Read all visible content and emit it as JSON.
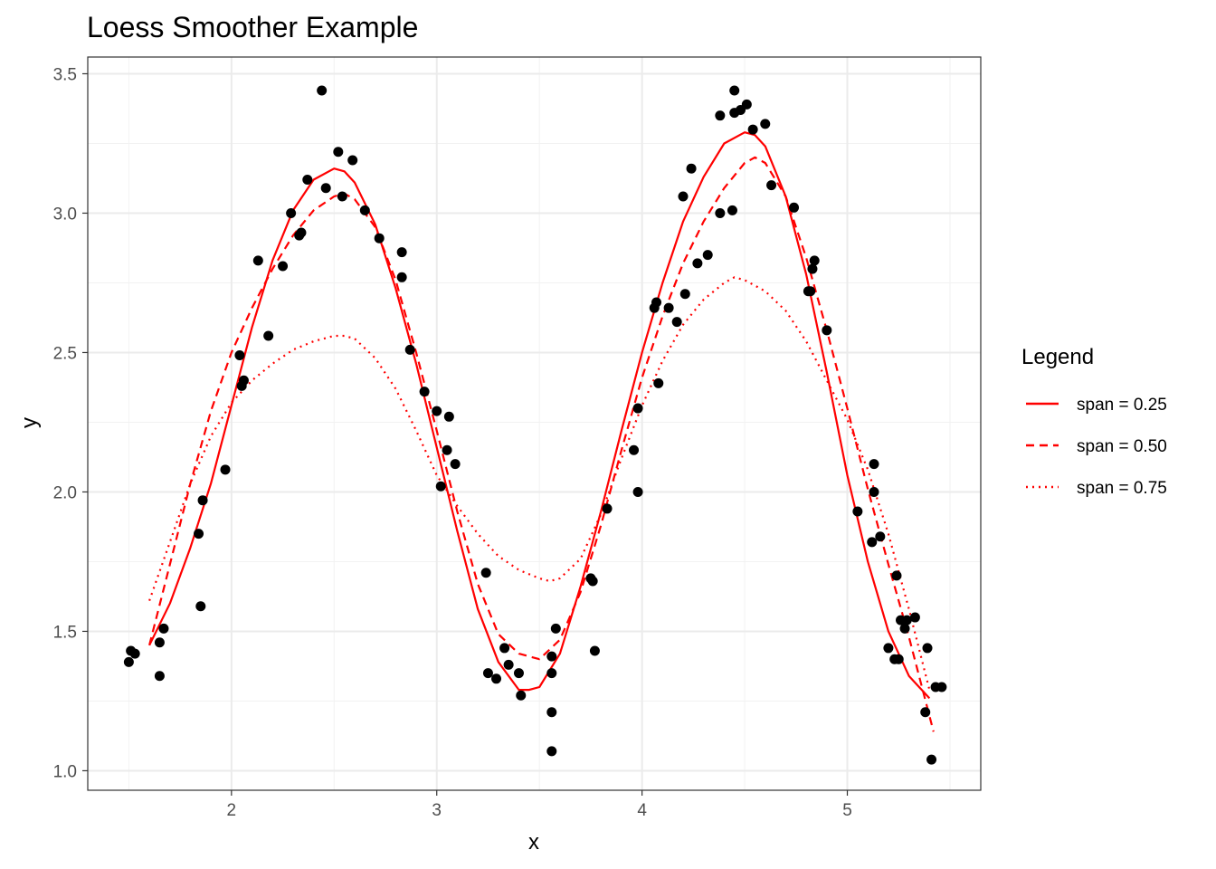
{
  "chart_data": {
    "type": "scatter",
    "title": "Loess Smoother Example",
    "xlabel": "x",
    "ylabel": "y",
    "xlim": [
      1.3,
      5.65
    ],
    "ylim": [
      0.93,
      3.56
    ],
    "x_ticks": [
      2,
      3,
      4,
      5
    ],
    "y_ticks": [
      1.0,
      1.5,
      2.0,
      2.5,
      3.0,
      3.5
    ],
    "x_tick_labels": [
      "2",
      "3",
      "4",
      "5"
    ],
    "y_tick_labels": [
      "1.0",
      "1.5",
      "2.0",
      "2.5",
      "3.0",
      "3.5"
    ],
    "grid": true,
    "legend": {
      "title": "Legend",
      "position": "right",
      "entries": [
        "span = 0.25",
        "span = 0.50",
        "span = 0.75"
      ]
    },
    "points": [
      {
        "x": 1.5,
        "y": 1.39
      },
      {
        "x": 1.51,
        "y": 1.43
      },
      {
        "x": 1.53,
        "y": 1.42
      },
      {
        "x": 1.65,
        "y": 1.34
      },
      {
        "x": 1.65,
        "y": 1.46
      },
      {
        "x": 1.67,
        "y": 1.51
      },
      {
        "x": 1.84,
        "y": 1.85
      },
      {
        "x": 1.85,
        "y": 1.59
      },
      {
        "x": 1.86,
        "y": 1.97
      },
      {
        "x": 1.97,
        "y": 2.08
      },
      {
        "x": 2.04,
        "y": 2.49
      },
      {
        "x": 2.05,
        "y": 2.38
      },
      {
        "x": 2.06,
        "y": 2.4
      },
      {
        "x": 2.13,
        "y": 2.83
      },
      {
        "x": 2.18,
        "y": 2.56
      },
      {
        "x": 2.25,
        "y": 2.81
      },
      {
        "x": 2.29,
        "y": 3.0
      },
      {
        "x": 2.33,
        "y": 2.92
      },
      {
        "x": 2.34,
        "y": 2.93
      },
      {
        "x": 2.37,
        "y": 3.12
      },
      {
        "x": 2.44,
        "y": 3.44
      },
      {
        "x": 2.46,
        "y": 3.09
      },
      {
        "x": 2.52,
        "y": 3.22
      },
      {
        "x": 2.54,
        "y": 3.06
      },
      {
        "x": 2.59,
        "y": 3.19
      },
      {
        "x": 2.65,
        "y": 3.01
      },
      {
        "x": 2.72,
        "y": 2.91
      },
      {
        "x": 2.83,
        "y": 2.86
      },
      {
        "x": 2.83,
        "y": 2.77
      },
      {
        "x": 2.87,
        "y": 2.51
      },
      {
        "x": 2.94,
        "y": 2.36
      },
      {
        "x": 3.0,
        "y": 2.29
      },
      {
        "x": 3.02,
        "y": 2.02
      },
      {
        "x": 3.05,
        "y": 2.15
      },
      {
        "x": 3.06,
        "y": 2.27
      },
      {
        "x": 3.09,
        "y": 2.1
      },
      {
        "x": 3.24,
        "y": 1.71
      },
      {
        "x": 3.25,
        "y": 1.35
      },
      {
        "x": 3.29,
        "y": 1.33
      },
      {
        "x": 3.33,
        "y": 1.44
      },
      {
        "x": 3.35,
        "y": 1.38
      },
      {
        "x": 3.4,
        "y": 1.35
      },
      {
        "x": 3.41,
        "y": 1.27
      },
      {
        "x": 3.56,
        "y": 1.21
      },
      {
        "x": 3.56,
        "y": 1.07
      },
      {
        "x": 3.56,
        "y": 1.35
      },
      {
        "x": 3.56,
        "y": 1.41
      },
      {
        "x": 3.58,
        "y": 1.51
      },
      {
        "x": 3.75,
        "y": 1.69
      },
      {
        "x": 3.76,
        "y": 1.68
      },
      {
        "x": 3.77,
        "y": 1.43
      },
      {
        "x": 3.83,
        "y": 1.94
      },
      {
        "x": 3.96,
        "y": 2.15
      },
      {
        "x": 3.98,
        "y": 2.3
      },
      {
        "x": 3.98,
        "y": 2.0
      },
      {
        "x": 4.06,
        "y": 2.66
      },
      {
        "x": 4.07,
        "y": 2.68
      },
      {
        "x": 4.08,
        "y": 2.39
      },
      {
        "x": 4.13,
        "y": 2.66
      },
      {
        "x": 4.17,
        "y": 2.61
      },
      {
        "x": 4.2,
        "y": 3.06
      },
      {
        "x": 4.21,
        "y": 2.71
      },
      {
        "x": 4.24,
        "y": 3.16
      },
      {
        "x": 4.27,
        "y": 2.82
      },
      {
        "x": 4.32,
        "y": 2.85
      },
      {
        "x": 4.38,
        "y": 3.35
      },
      {
        "x": 4.38,
        "y": 3.0
      },
      {
        "x": 4.44,
        "y": 3.01
      },
      {
        "x": 4.45,
        "y": 3.36
      },
      {
        "x": 4.45,
        "y": 3.44
      },
      {
        "x": 4.48,
        "y": 3.37
      },
      {
        "x": 4.51,
        "y": 3.39
      },
      {
        "x": 4.54,
        "y": 3.3
      },
      {
        "x": 4.6,
        "y": 3.32
      },
      {
        "x": 4.63,
        "y": 3.1
      },
      {
        "x": 4.74,
        "y": 3.02
      },
      {
        "x": 4.81,
        "y": 2.72
      },
      {
        "x": 4.82,
        "y": 2.72
      },
      {
        "x": 4.83,
        "y": 2.8
      },
      {
        "x": 4.84,
        "y": 2.83
      },
      {
        "x": 4.9,
        "y": 2.58
      },
      {
        "x": 5.05,
        "y": 1.93
      },
      {
        "x": 5.12,
        "y": 1.82
      },
      {
        "x": 5.13,
        "y": 2.1
      },
      {
        "x": 5.13,
        "y": 2.0
      },
      {
        "x": 5.16,
        "y": 1.84
      },
      {
        "x": 5.2,
        "y": 1.44
      },
      {
        "x": 5.23,
        "y": 1.4
      },
      {
        "x": 5.24,
        "y": 1.7
      },
      {
        "x": 5.25,
        "y": 1.4
      },
      {
        "x": 5.26,
        "y": 1.54
      },
      {
        "x": 5.28,
        "y": 1.51
      },
      {
        "x": 5.29,
        "y": 1.54
      },
      {
        "x": 5.33,
        "y": 1.55
      },
      {
        "x": 5.38,
        "y": 1.21
      },
      {
        "x": 5.39,
        "y": 1.44
      },
      {
        "x": 5.41,
        "y": 1.04
      },
      {
        "x": 5.43,
        "y": 1.3
      },
      {
        "x": 5.46,
        "y": 1.3
      }
    ],
    "series": [
      {
        "name": "span = 0.25",
        "dash": "solid",
        "color": "#ff0000",
        "x": [
          1.6,
          1.7,
          1.8,
          1.9,
          2.0,
          2.1,
          2.2,
          2.3,
          2.4,
          2.5,
          2.55,
          2.6,
          2.7,
          2.8,
          2.9,
          3.0,
          3.1,
          3.2,
          3.3,
          3.4,
          3.45,
          3.5,
          3.6,
          3.7,
          3.8,
          3.9,
          4.0,
          4.1,
          4.2,
          4.3,
          4.4,
          4.5,
          4.55,
          4.6,
          4.7,
          4.8,
          4.9,
          5.0,
          5.1,
          5.2,
          5.3,
          5.4
        ],
        "y": [
          1.45,
          1.6,
          1.8,
          2.03,
          2.31,
          2.59,
          2.83,
          3.01,
          3.12,
          3.16,
          3.15,
          3.11,
          2.96,
          2.73,
          2.46,
          2.16,
          1.86,
          1.58,
          1.39,
          1.29,
          1.29,
          1.3,
          1.42,
          1.66,
          1.93,
          2.22,
          2.5,
          2.75,
          2.97,
          3.13,
          3.25,
          3.29,
          3.28,
          3.24,
          3.06,
          2.78,
          2.43,
          2.06,
          1.75,
          1.5,
          1.34,
          1.26
        ]
      },
      {
        "name": "span = 0.50",
        "dash": "dashed",
        "color": "#ff0000",
        "x": [
          1.6,
          1.7,
          1.8,
          1.9,
          2.0,
          2.1,
          2.2,
          2.3,
          2.4,
          2.5,
          2.55,
          2.6,
          2.7,
          2.8,
          2.9,
          3.0,
          3.1,
          3.2,
          3.3,
          3.4,
          3.5,
          3.6,
          3.7,
          3.8,
          3.9,
          4.0,
          4.1,
          4.2,
          4.3,
          4.4,
          4.5,
          4.55,
          4.6,
          4.7,
          4.8,
          4.9,
          5.0,
          5.1,
          5.2,
          5.3,
          5.42
        ],
        "y": [
          1.45,
          1.74,
          2.03,
          2.29,
          2.5,
          2.66,
          2.8,
          2.92,
          3.01,
          3.06,
          3.07,
          3.05,
          2.95,
          2.76,
          2.5,
          2.22,
          1.93,
          1.67,
          1.49,
          1.42,
          1.4,
          1.47,
          1.64,
          1.88,
          2.15,
          2.41,
          2.63,
          2.82,
          2.97,
          3.09,
          3.18,
          3.2,
          3.18,
          3.06,
          2.84,
          2.58,
          2.3,
          2.01,
          1.74,
          1.48,
          1.14
        ]
      },
      {
        "name": "span = 0.75",
        "dash": "dotted",
        "color": "#ff0000",
        "x": [
          1.6,
          1.7,
          1.8,
          1.9,
          2.0,
          2.1,
          2.2,
          2.3,
          2.4,
          2.5,
          2.55,
          2.6,
          2.7,
          2.8,
          2.9,
          3.0,
          3.1,
          3.2,
          3.3,
          3.4,
          3.5,
          3.55,
          3.6,
          3.7,
          3.8,
          3.9,
          4.0,
          4.1,
          4.2,
          4.3,
          4.4,
          4.45,
          4.5,
          4.6,
          4.7,
          4.8,
          4.9,
          5.0,
          5.1,
          5.2,
          5.3,
          5.4
        ],
        "y": [
          1.61,
          1.82,
          2.03,
          2.2,
          2.32,
          2.4,
          2.46,
          2.51,
          2.54,
          2.56,
          2.56,
          2.55,
          2.48,
          2.37,
          2.22,
          2.06,
          1.95,
          1.85,
          1.77,
          1.72,
          1.69,
          1.68,
          1.69,
          1.76,
          1.92,
          2.12,
          2.31,
          2.47,
          2.6,
          2.69,
          2.75,
          2.77,
          2.76,
          2.72,
          2.65,
          2.54,
          2.4,
          2.26,
          2.08,
          1.85,
          1.58,
          1.29
        ]
      }
    ]
  }
}
